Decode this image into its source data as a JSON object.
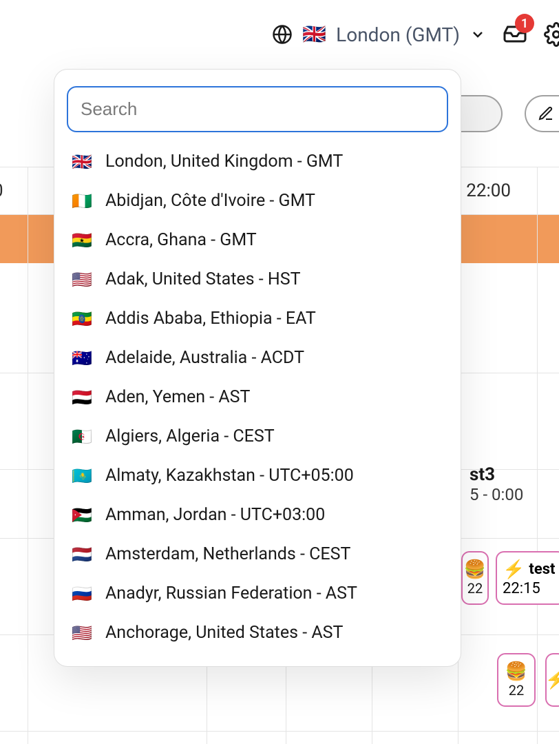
{
  "header": {
    "tz_label": "London (GMT)",
    "tz_flag": "🇬🇧",
    "badge_count": "1"
  },
  "search": {
    "placeholder": "Search"
  },
  "options": [
    {
      "flag": "🇬🇧",
      "label": "London, United Kingdom - GMT"
    },
    {
      "flag": "🇨🇮",
      "label": "Abidjan, Côte d'Ivoire - GMT"
    },
    {
      "flag": "🇬🇭",
      "label": "Accra, Ghana - GMT"
    },
    {
      "flag": "🇺🇸",
      "label": "Adak, United States - HST"
    },
    {
      "flag": "🇪🇹",
      "label": "Addis Ababa, Ethiopia - EAT"
    },
    {
      "flag": "🇦🇺",
      "label": "Adelaide, Australia - ACDT"
    },
    {
      "flag": "🇾🇪",
      "label": "Aden, Yemen - AST"
    },
    {
      "flag": "🇩🇿",
      "label": "Algiers, Algeria - CEST"
    },
    {
      "flag": "🇰🇿",
      "label": "Almaty, Kazakhstan - UTC+05:00"
    },
    {
      "flag": "🇯🇴",
      "label": "Amman, Jordan - UTC+03:00"
    },
    {
      "flag": "🇳🇱",
      "label": "Amsterdam, Netherlands - CEST"
    },
    {
      "flag": "🇷🇺",
      "label": "Anadyr, Russian Federation - AST"
    },
    {
      "flag": "🇺🇸",
      "label": "Anchorage, United States - AST"
    }
  ],
  "timeline": {
    "time_left": "0",
    "time_right": "22:00",
    "orange_color": "#f19a5a"
  },
  "events": {
    "test3_title": "st3",
    "test3_time": "5 - 0:00",
    "burger_emoji": "🍔",
    "bolt_emoji": "⚡",
    "bolt_label": "test",
    "bolt_time": "22:15",
    "cell_22_a": "22",
    "cell_22_b": "22",
    "event_border_color": "#d96fb0"
  }
}
